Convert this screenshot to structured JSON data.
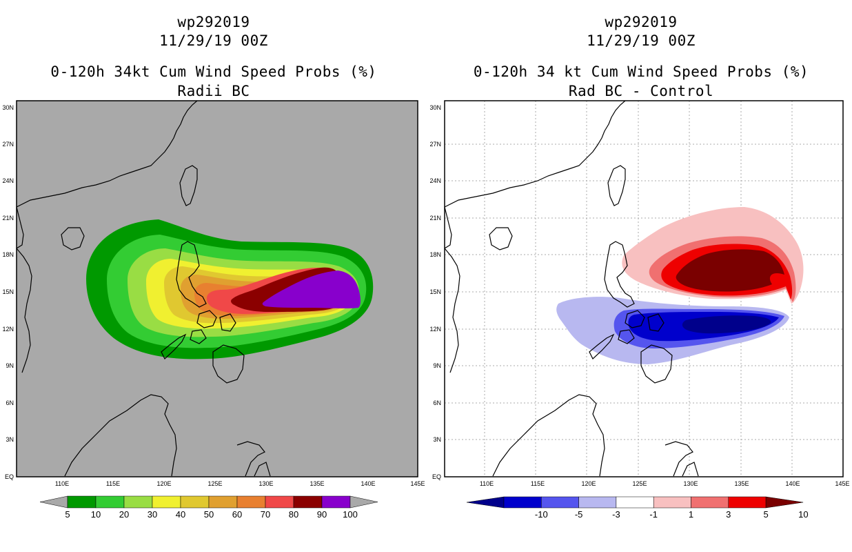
{
  "left_panel": {
    "storm_id": "wp292019",
    "datetime": "11/29/19 00Z",
    "title": "0-120h 34kt Cum Wind Speed Probs (%)",
    "subtitle": "Radii BC",
    "colorbar": {
      "labels": [
        "5",
        "10",
        "20",
        "30",
        "40",
        "50",
        "60",
        "70",
        "80",
        "90",
        "100"
      ],
      "colors": [
        "#009900",
        "#33cc33",
        "#99dd44",
        "#f0f030",
        "#e0c830",
        "#e0a030",
        "#e88030",
        "#f04848",
        "#8b0000",
        "#8800cc"
      ],
      "end_colors": [
        "#a9a9a9",
        "#a9a9a9"
      ]
    }
  },
  "right_panel": {
    "storm_id": "wp292019",
    "datetime": "11/29/19 00Z",
    "title": "0-120h 34 kt Cum Wind Speed Probs (%)",
    "subtitle": "Rad BC - Control",
    "colorbar": {
      "labels": [
        "-10",
        "-5",
        "-3",
        "-1",
        "1",
        "3",
        "5",
        "10"
      ],
      "colors": [
        "#0000cc",
        "#5555ee",
        "#b8b8f0",
        "#ffffff",
        "#f8c0c0",
        "#f07070",
        "#ee0000"
      ],
      "end_colors": [
        "#00008b",
        "#7a0000"
      ]
    }
  },
  "map_axes": {
    "lat_labels": [
      "30N",
      "27N",
      "24N",
      "21N",
      "18N",
      "15N",
      "12N",
      "9N",
      "6N",
      "3N",
      "EQ"
    ],
    "lon_labels": [
      "110E",
      "115E",
      "120E",
      "125E",
      "130E",
      "135E",
      "140E",
      "145E"
    ]
  }
}
